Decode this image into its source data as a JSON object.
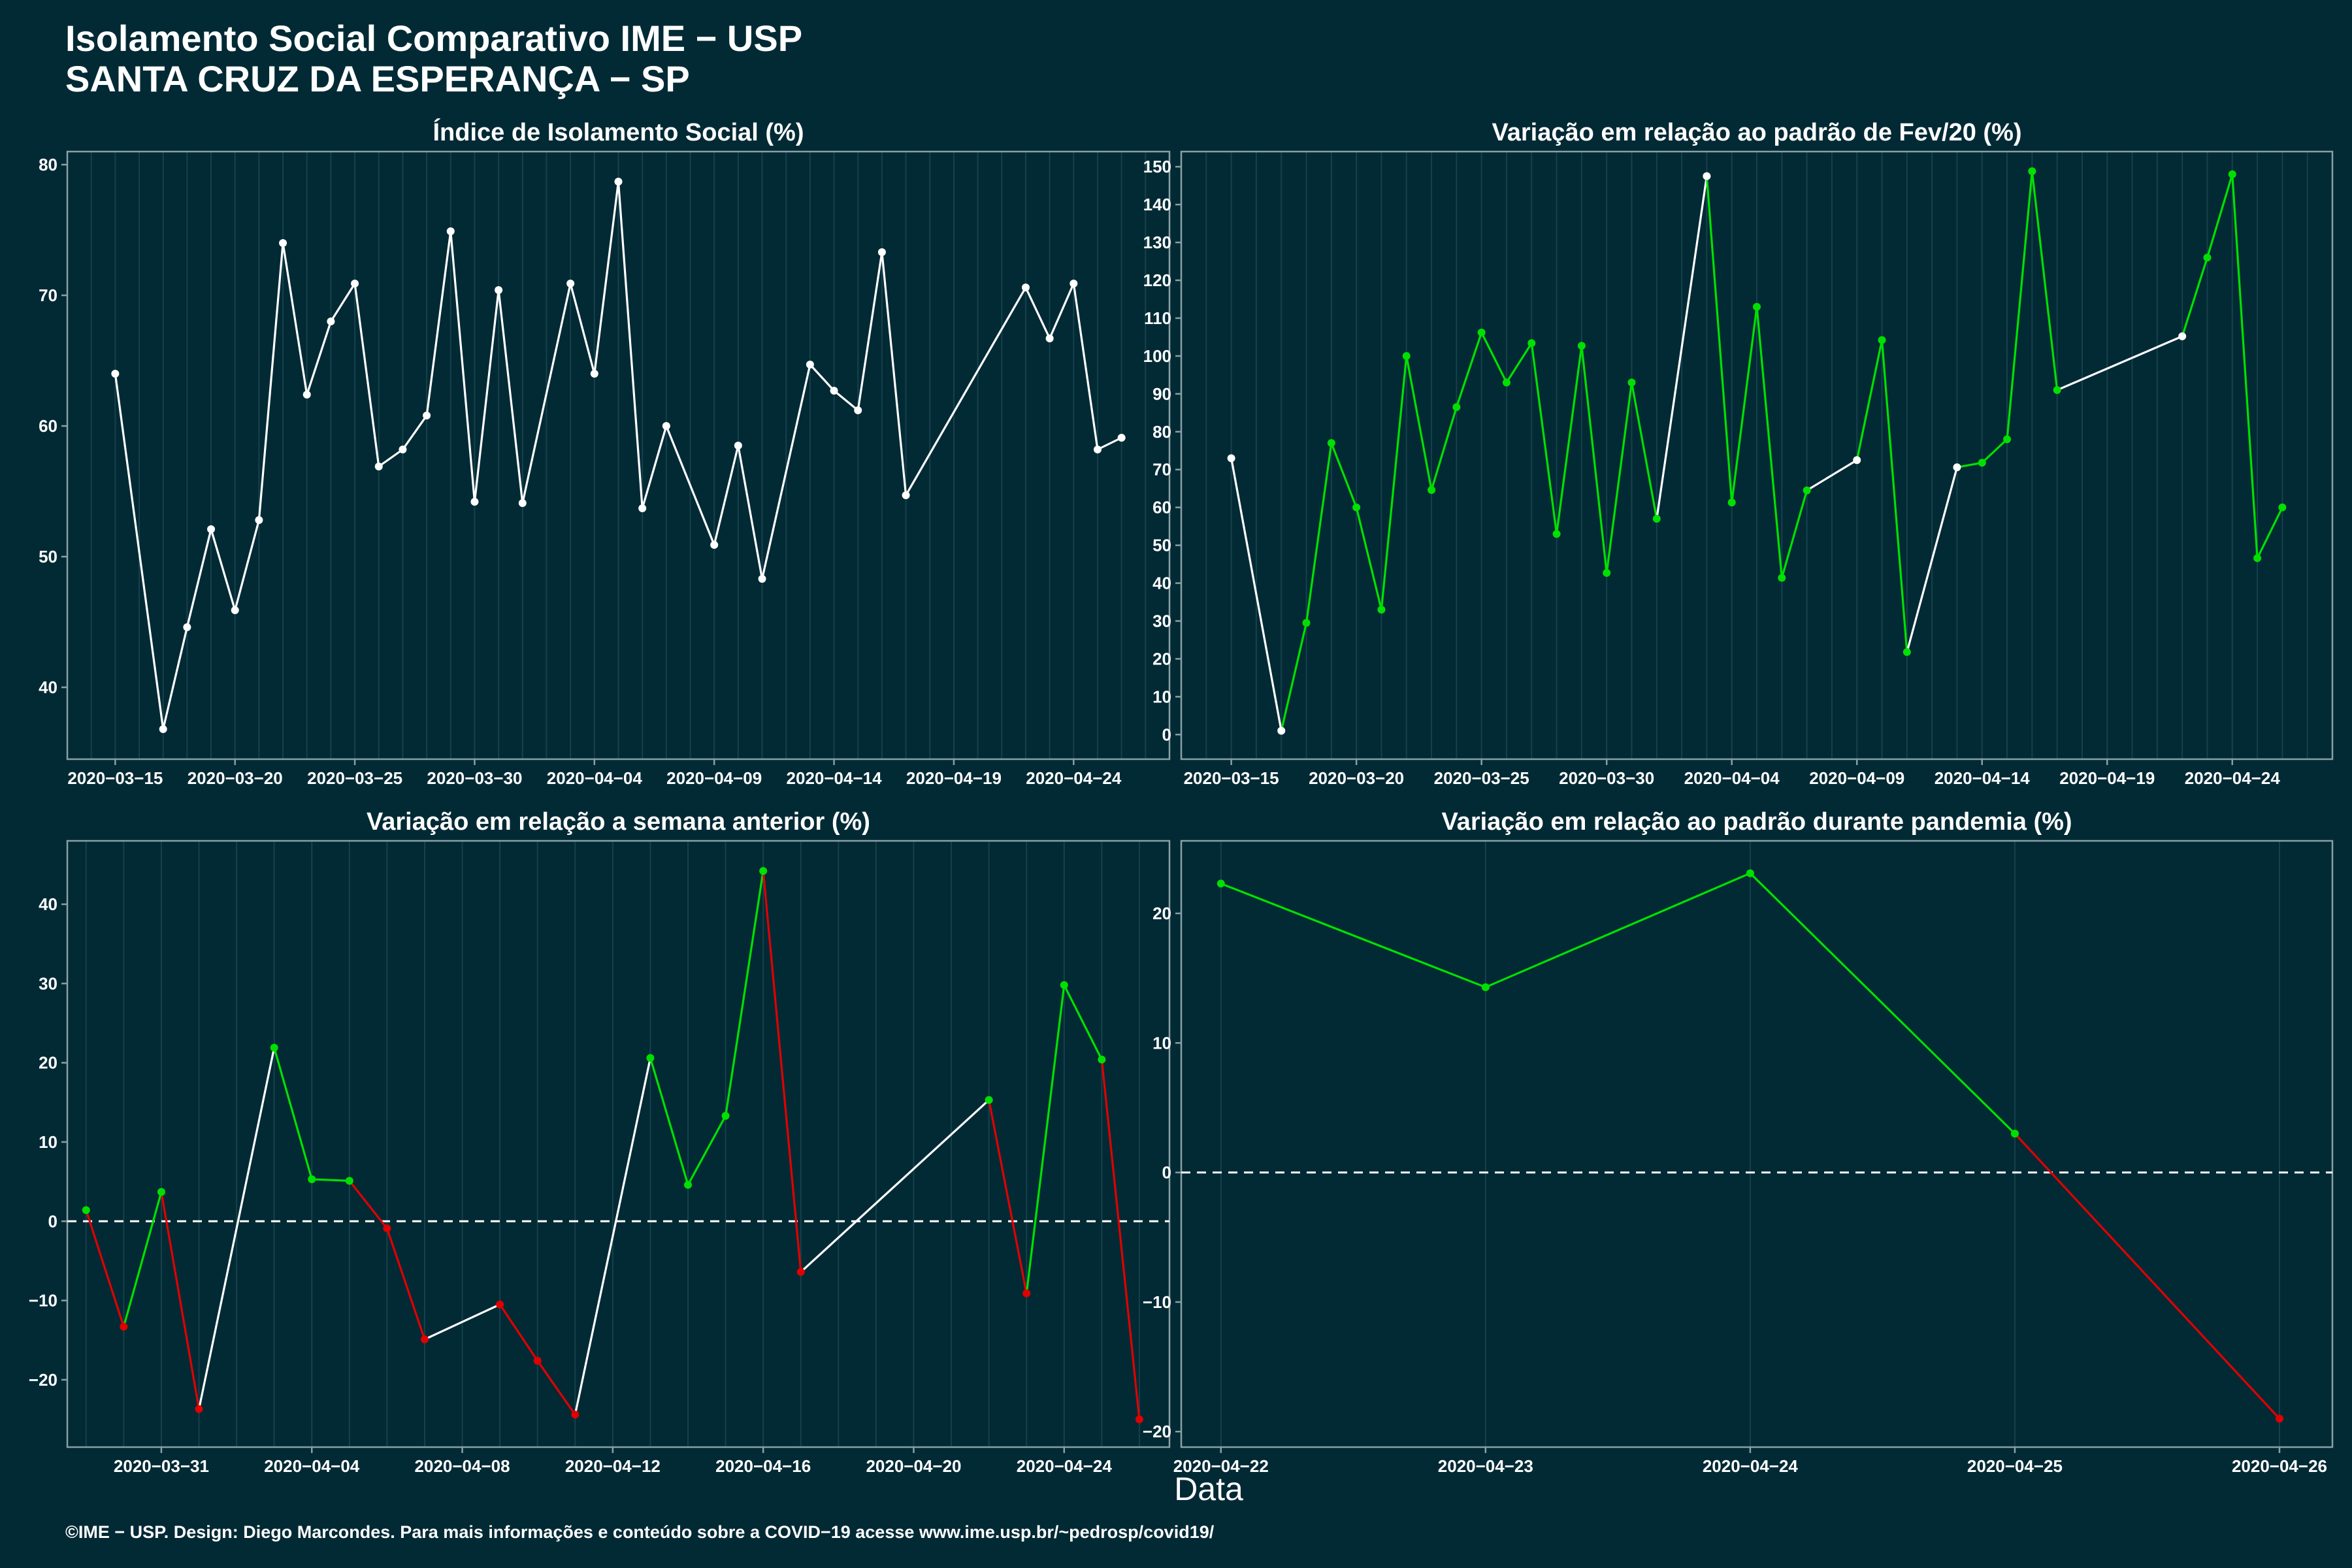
{
  "header": {
    "title_line1": "Isolamento Social Comparativo IME − USP",
    "title_line2": "SANTA CRUZ DA ESPERANÇA − SP"
  },
  "xlabel": "Data",
  "footer": "©IME − USP. Design: Diego Marcondes. Para mais informações e conteúdo sobre a COVID−19 acesse www.ime.usp.br/~pedrosp/covid19/",
  "colors": {
    "background": "#022a35",
    "neutral": "#ffffff",
    "positive": "#00e000",
    "negative": "#e00000",
    "frame": "#8aa0a5",
    "grid": "#16414b"
  },
  "chart_data": [
    {
      "type": "line",
      "title": "Índice de Isolamento Social (%)",
      "x_tick_labels": [
        "2020−03−15",
        "2020−03−20",
        "2020−03−25",
        "2020−03−30",
        "2020−04−04",
        "2020−04−09",
        "2020−04−14",
        "2020−04−19",
        "2020−04−24"
      ],
      "y_ticks": [
        40,
        50,
        60,
        70,
        80
      ],
      "ylim": [
        34.5,
        81
      ],
      "zero_line": false,
      "x": [
        "2020-03-15",
        "2020-03-17",
        "2020-03-18",
        "2020-03-19",
        "2020-03-20",
        "2020-03-21",
        "2020-03-22",
        "2020-03-23",
        "2020-03-24",
        "2020-03-25",
        "2020-03-26",
        "2020-03-27",
        "2020-03-28",
        "2020-03-29",
        "2020-03-30",
        "2020-03-31",
        "2020-04-01",
        "2020-04-03",
        "2020-04-04",
        "2020-04-05",
        "2020-04-06",
        "2020-04-07",
        "2020-04-09",
        "2020-04-10",
        "2020-04-11",
        "2020-04-13",
        "2020-04-14",
        "2020-04-15",
        "2020-04-16",
        "2020-04-17",
        "2020-04-22",
        "2020-04-23",
        "2020-04-24",
        "2020-04-25",
        "2020-04-26"
      ],
      "values": [
        64,
        36.8,
        44.6,
        52.1,
        45.9,
        52.8,
        74,
        62.4,
        68,
        70.9,
        56.9,
        58.2,
        60.8,
        74.9,
        54.2,
        70.4,
        54.1,
        70.9,
        64,
        78.7,
        53.7,
        60,
        50.9,
        58.5,
        48.3,
        64.7,
        62.7,
        61.2,
        73.3,
        54.7,
        70.6,
        66.7,
        70.9,
        58.2,
        59.1
      ],
      "segment_colors": [
        "neutral"
      ]
    },
    {
      "type": "line",
      "title": "Variação em relação ao padrão de Fev/20 (%)",
      "x_tick_labels": [
        "2020−03−15",
        "2020−03−20",
        "2020−03−25",
        "2020−03−30",
        "2020−04−04",
        "2020−04−09",
        "2020−04−14",
        "2020−04−19",
        "2020−04−24"
      ],
      "y_ticks": [
        0,
        10,
        20,
        30,
        40,
        50,
        60,
        70,
        80,
        90,
        100,
        110,
        120,
        130,
        140,
        150
      ],
      "ylim": [
        -6.5,
        154
      ],
      "zero_line": false,
      "x": [
        "2020-03-15",
        "2020-03-17",
        "2020-03-18",
        "2020-03-19",
        "2020-03-20",
        "2020-03-21",
        "2020-03-22",
        "2020-03-23",
        "2020-03-24",
        "2020-03-25",
        "2020-03-26",
        "2020-03-27",
        "2020-03-28",
        "2020-03-29",
        "2020-03-30",
        "2020-03-31",
        "2020-04-01",
        "2020-04-03",
        "2020-04-04",
        "2020-04-05",
        "2020-04-06",
        "2020-04-07",
        "2020-04-09",
        "2020-04-10",
        "2020-04-11",
        "2020-04-13",
        "2020-04-14",
        "2020-04-15",
        "2020-04-16",
        "2020-04-17",
        "2020-04-22",
        "2020-04-23",
        "2020-04-24",
        "2020-04-25",
        "2020-04-26"
      ],
      "values": [
        73,
        1,
        29.5,
        77,
        60,
        33,
        100,
        64.6,
        86.5,
        106.2,
        93,
        103.4,
        53,
        102.7,
        42.7,
        93,
        57,
        147.5,
        61.3,
        113,
        41.4,
        64.5,
        72.5,
        104.2,
        21.8,
        70.6,
        71.8,
        78,
        148.8,
        91,
        105.2,
        126,
        148,
        46.6,
        60
      ],
      "segment_colors": [
        "neutral",
        "positive",
        "positive",
        "positive",
        "positive",
        "positive",
        "positive",
        "positive",
        "positive",
        "positive",
        "positive",
        "positive",
        "positive",
        "positive",
        "positive",
        "positive",
        "neutral",
        "positive",
        "positive",
        "positive",
        "positive",
        "neutral",
        "positive",
        "positive",
        "neutral",
        "positive",
        "positive",
        "positive",
        "positive",
        "neutral",
        "positive",
        "positive",
        "positive",
        "positive"
      ]
    },
    {
      "type": "line",
      "title": "Variação em relação a semana anterior (%)",
      "x_tick_labels": [
        "2020−03−31",
        "2020−04−04",
        "2020−04−08",
        "2020−04−12",
        "2020−04−16",
        "2020−04−20",
        "2020−04−24"
      ],
      "y_ticks": [
        -20,
        -10,
        0,
        10,
        20,
        30,
        40
      ],
      "ylim": [
        -28.5,
        48
      ],
      "zero_line": true,
      "x": [
        "2020-03-29",
        "2020-03-30",
        "2020-03-31",
        "2020-04-01",
        "2020-04-03",
        "2020-04-04",
        "2020-04-05",
        "2020-04-06",
        "2020-04-07",
        "2020-04-09",
        "2020-04-10",
        "2020-04-11",
        "2020-04-13",
        "2020-04-14",
        "2020-04-15",
        "2020-04-16",
        "2020-04-17",
        "2020-04-22",
        "2020-04-23",
        "2020-04-24",
        "2020-04-25",
        "2020-04-26"
      ],
      "values": [
        1.4,
        -13.3,
        3.7,
        -23.7,
        21.9,
        5.3,
        5.1,
        -0.9,
        -14.9,
        -10.5,
        -17.6,
        -24.4,
        20.6,
        4.6,
        13.3,
        44.2,
        -6.4,
        15.3,
        -9.1,
        29.8,
        20.4,
        -25
      ],
      "segment_colors": [
        "negative",
        "positive",
        "negative",
        "neutral",
        "positive",
        "positive",
        "negative",
        "negative",
        "neutral",
        "negative",
        "negative",
        "neutral",
        "positive",
        "positive",
        "positive",
        "negative",
        "neutral",
        "negative",
        "positive",
        "positive",
        "negative"
      ],
      "point_colors": [
        "positive",
        "negative",
        "positive",
        "negative",
        "positive",
        "positive",
        "positive",
        "negative",
        "negative",
        "negative",
        "negative",
        "negative",
        "positive",
        "positive",
        "positive",
        "positive",
        "negative",
        "positive",
        "negative",
        "positive",
        "positive",
        "negative"
      ]
    },
    {
      "type": "line",
      "title": "Variação em relação ao padrão durante pandemia (%)",
      "x_tick_labels": [
        "2020−04−22",
        "2020−04−23",
        "2020−04−24",
        "2020−04−25",
        "2020−04−26"
      ],
      "y_ticks": [
        -20,
        -10,
        0,
        10,
        20
      ],
      "ylim": [
        -21.2,
        25.6
      ],
      "zero_line": true,
      "x": [
        "2020-04-22",
        "2020-04-23",
        "2020-04-24",
        "2020-04-25",
        "2020-04-26"
      ],
      "values": [
        22.3,
        14.3,
        23.1,
        3,
        -19
      ],
      "segment_colors": [
        "positive",
        "positive",
        "positive",
        "negative"
      ],
      "point_colors": [
        "positive",
        "positive",
        "positive",
        "positive",
        "negative"
      ]
    }
  ]
}
